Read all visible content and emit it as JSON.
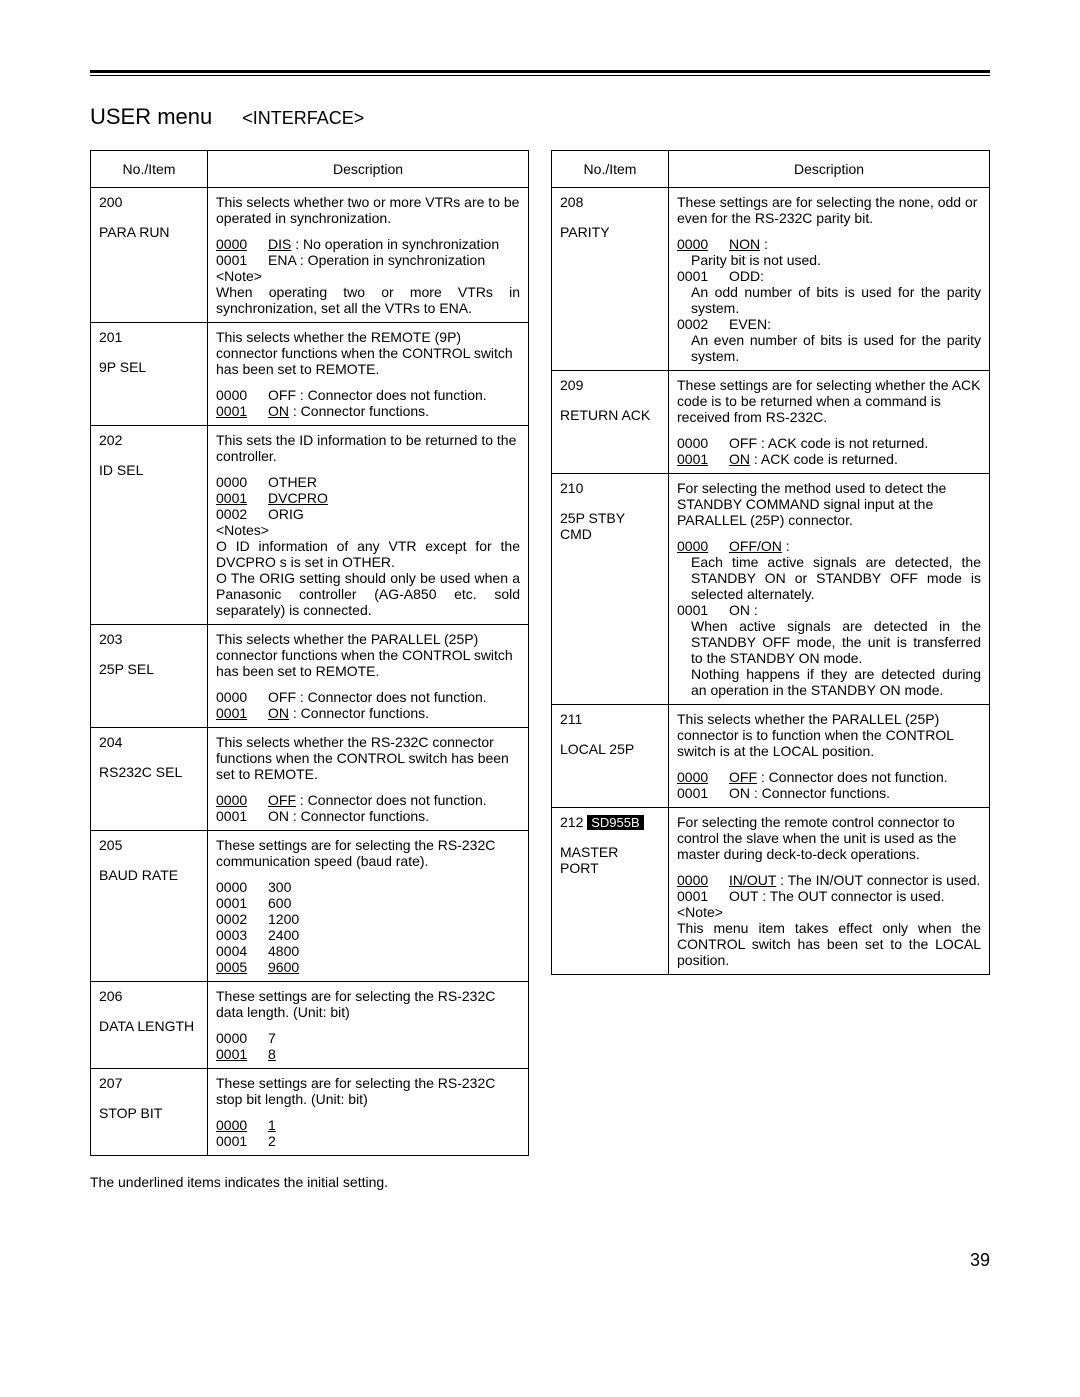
{
  "title": {
    "main": "USER menu",
    "sub": "<INTERFACE>"
  },
  "headers": {
    "noitem": "No./Item",
    "desc": "Description"
  },
  "left": [
    {
      "no": "200",
      "item": "PARA RUN",
      "intro": "This selects whether two or more VTRs are to be operated in synchronization.",
      "opts": [
        {
          "code": "0000",
          "code_u": true,
          "label": "DIS",
          "label_u": true,
          "sep": " : ",
          "text": "No operation in synchronization"
        },
        {
          "code": "0001",
          "label": "ENA",
          "sep": " : ",
          "text": "Operation in synchronization"
        }
      ],
      "note_label": "<Note>",
      "note": "When operating two or more VTRs in synchronization, set all the VTRs to ENA."
    },
    {
      "no": "201",
      "item": "9P SEL",
      "intro": "This selects whether the REMOTE (9P) connector functions when the CONTROL switch has been set to REMOTE.",
      "opts": [
        {
          "code": "0000",
          "label": "OFF",
          "sep": " : ",
          "text": "Connector does not function."
        },
        {
          "code": "0001",
          "code_u": true,
          "label": "ON",
          "label_u": true,
          "sep": " : ",
          "text": "Connector functions."
        }
      ]
    },
    {
      "no": "202",
      "item": "ID SEL",
      "intro": "This sets the ID information to be returned to the controller.",
      "opts": [
        {
          "code": "0000",
          "label": "OTHER"
        },
        {
          "code": "0001",
          "code_u": true,
          "label": "DVCPRO",
          "label_u": true
        },
        {
          "code": "0002",
          "label": "ORIG"
        }
      ],
      "notes_label": "<Notes>",
      "notes": [
        "O ID information of any VTR except for the DVCPRO s is set in OTHER.",
        "O The ORIG setting should only be used when a Panasonic controller (AG-A850 etc. sold separately) is connected."
      ]
    },
    {
      "no": "203",
      "item": "25P SEL",
      "intro": "This selects whether the PARALLEL (25P) connector functions when the CONTROL switch has been set to REMOTE.",
      "opts": [
        {
          "code": "0000",
          "label": "OFF",
          "sep": " : ",
          "text": "Connector does not function."
        },
        {
          "code": "0001",
          "code_u": true,
          "label": "ON",
          "label_u": true,
          "sep": " : ",
          "text": "Connector functions."
        }
      ]
    },
    {
      "no": "204",
      "item": "RS232C SEL",
      "intro": "This selects whether the RS-232C connector functions when the CONTROL switch has been set to REMOTE.",
      "opts": [
        {
          "code": "0000",
          "code_u": true,
          "label": "OFF",
          "label_u": true,
          "sep": " : ",
          "text": "Connector does not function."
        },
        {
          "code": "0001",
          "label": "ON",
          "sep": " : ",
          "text": "Connector functions."
        }
      ]
    },
    {
      "no": "205",
      "item": "BAUD RATE",
      "intro": "These settings are for selecting the RS-232C communication speed (baud rate).",
      "opts": [
        {
          "code": "0000",
          "label": "300"
        },
        {
          "code": "0001",
          "label": "600"
        },
        {
          "code": "0002",
          "label": "1200"
        },
        {
          "code": "0003",
          "label": "2400"
        },
        {
          "code": "0004",
          "label": "4800"
        },
        {
          "code": "0005",
          "code_u": true,
          "label": "9600",
          "label_u": true
        }
      ]
    },
    {
      "no": "206",
      "item": "DATA LENGTH",
      "intro": "These settings are for selecting the RS-232C data length.    (Unit: bit)",
      "opts": [
        {
          "code": "0000",
          "label": "7"
        },
        {
          "code": "0001",
          "code_u": true,
          "label": "8",
          "label_u": true
        }
      ]
    },
    {
      "no": "207",
      "item": "STOP BIT",
      "intro": "These settings are for selecting the RS-232C stop bit length.    (Unit: bit)",
      "opts": [
        {
          "code": "0000",
          "code_u": true,
          "label": "1",
          "label_u": true
        },
        {
          "code": "0001",
          "label": "2"
        }
      ]
    }
  ],
  "right": [
    {
      "no": "208",
      "item": "PARITY",
      "intro": "These settings are for selecting the none, odd or even for the RS-232C parity bit.",
      "opts2": [
        {
          "code": "0000",
          "code_u": true,
          "label": "NON",
          "label_u": true,
          "sep": " :",
          "desc": "Parity bit is not used."
        },
        {
          "code": "0001",
          "label": "ODD:",
          "desc": "An odd number of bits is used for the parity system."
        },
        {
          "code": "0002",
          "label": "EVEN:",
          "desc": "An even number of bits is used for the parity system."
        }
      ]
    },
    {
      "no": "209",
      "item": "RETURN ACK",
      "intro": "These settings are for selecting whether the ACK code is to be returned when a command is received from RS-232C.",
      "opts": [
        {
          "code": "0000",
          "label": "OFF",
          "sep": " : ",
          "text": "ACK code is not returned."
        },
        {
          "code": "0001",
          "code_u": true,
          "label": "ON",
          "label_u": true,
          "sep": " : ",
          "text": "ACK code is returned."
        }
      ]
    },
    {
      "no": "210",
      "item": "25P STBY CMD",
      "intro": "For selecting the method used to detect the STANDBY COMMAND signal input at the PARALLEL (25P) connector.",
      "opts2": [
        {
          "code": "0000",
          "code_u": true,
          "label": "OFF/ON",
          "label_u": true,
          "sep": " :",
          "desc": "Each time active signals are detected, the STANDBY ON or STANDBY OFF mode is selected alternately."
        },
        {
          "code": "0001",
          "label": "ON",
          "sep": " :",
          "desc": "When active signals are detected in the STANDBY OFF mode, the unit is transferred to the STANDBY ON mode.\nNothing happens if they are detected during an operation in the STANDBY ON mode."
        }
      ]
    },
    {
      "no": "211",
      "item": "LOCAL 25P",
      "intro": "This selects whether the PARALLEL (25P) connector is to function when the CONTROL switch is at the LOCAL position.",
      "opts": [
        {
          "code": "0000",
          "code_u": true,
          "label": "OFF",
          "label_u": true,
          "sep": " : ",
          "text": "Connector does not function."
        },
        {
          "code": "0001",
          "label": "ON",
          "sep": " : ",
          "text": "Connector functions."
        }
      ]
    },
    {
      "no": "212",
      "badge": "SD955B",
      "item": "MASTER PORT",
      "intro": "For selecting the remote control connector to control the slave when the unit is used as the master during deck-to-deck operations.",
      "opts": [
        {
          "code": "0000",
          "code_u": true,
          "label": "IN/OUT",
          "label_u": true,
          "sep": " : ",
          "text": "The IN/OUT connector is used."
        },
        {
          "code": "0001",
          "label": "OUT",
          "sep": " : ",
          "text": "The OUT connector is used."
        }
      ],
      "note_label": "<Note>",
      "note": "This menu item takes effect only when the CONTROL switch has been set to the LOCAL position."
    }
  ],
  "footnote": "The underlined items indicates the initial setting.",
  "pagenum": "39"
}
